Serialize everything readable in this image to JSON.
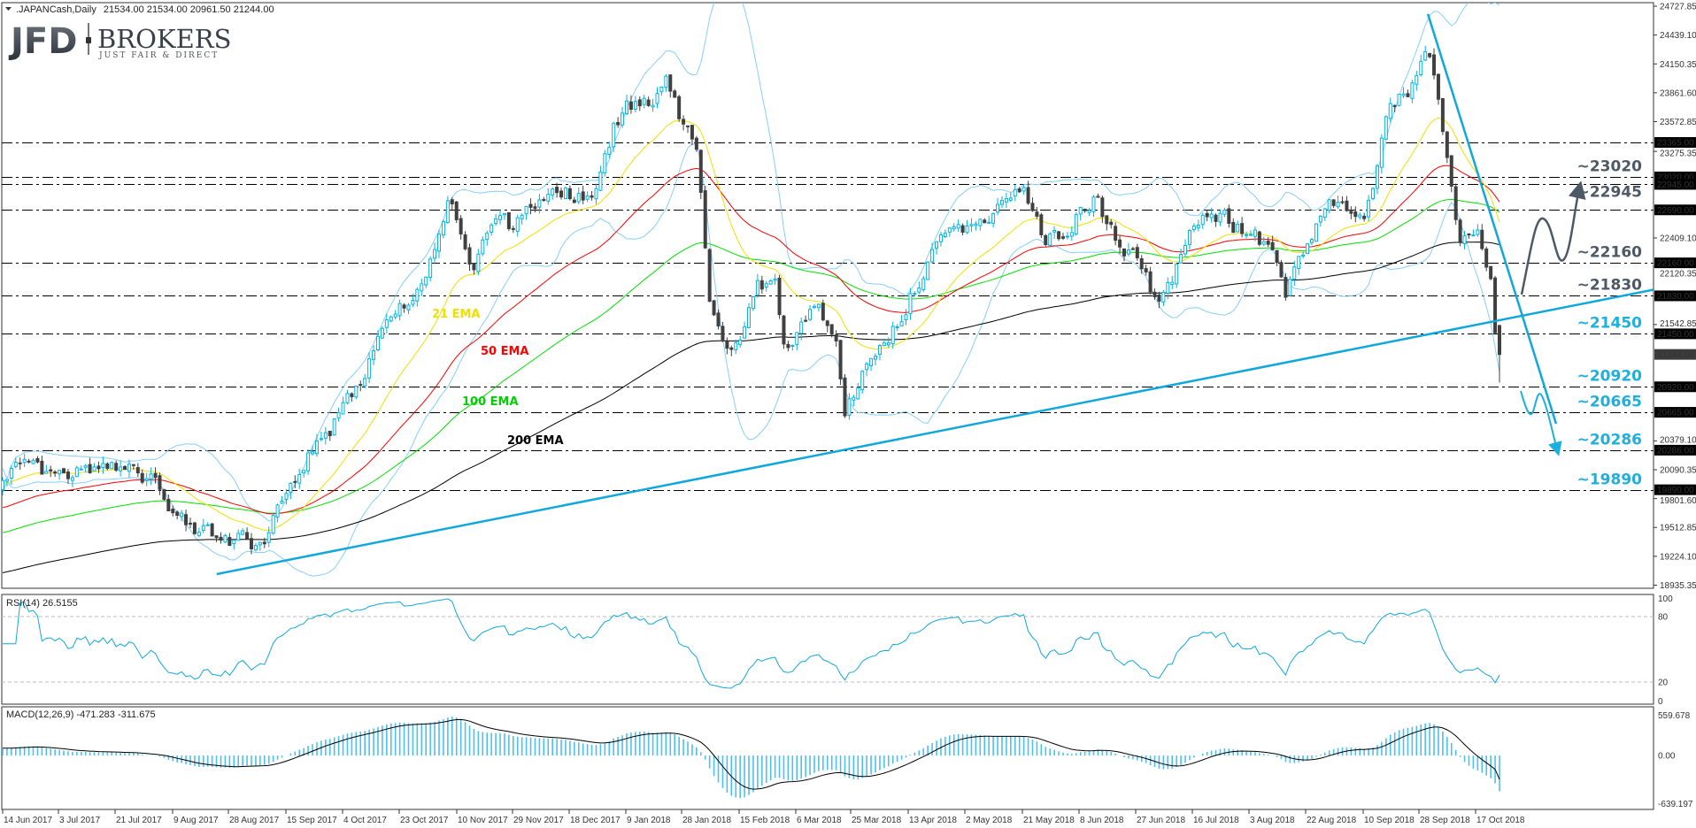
{
  "header": {
    "symbol": ".JAPANCash,Daily",
    "ohlc": "21534.00 21534.00 20961.50 21244.00"
  },
  "logo": {
    "main": "JFD",
    "secondary": "BROKERS",
    "tagline": "JUST FAIR & DIRECT"
  },
  "colors": {
    "bull_candle": "#00b4e6",
    "bear_candle": "#404040",
    "bollinger": "#87cefa",
    "ema21": "#f0e000",
    "ema50": "#ff0000",
    "ema100": "#00e000",
    "ema200": "#000000",
    "trendline": "#10a8dc",
    "level_grey": "#4d5966",
    "level_cyan": "#1ab0e0",
    "rsi": "#10a8dc",
    "macd_hist": "#4ec0f0",
    "macd_signal": "#000000"
  },
  "chart_data": {
    "type": "candlestick",
    "title": ".JAPANCash,Daily",
    "last_bar": {
      "open": 21534.0,
      "high": 21534.0,
      "low": 20961.5,
      "close": 21244.0
    },
    "current_price": 21244.0,
    "y_axis": {
      "range": [
        18935.35,
        24727.85
      ],
      "ticks": [
        "24727.85",
        "24439.10",
        "24150.35",
        "23861.60",
        "23572.85",
        "23275.35",
        "22409.10",
        "22120.35",
        "21542.85",
        "20379.10",
        "20090.35",
        "19801.60",
        "19512.85",
        "19224.10",
        "18935.35"
      ]
    },
    "x_ticks": [
      "14 Jun 2017",
      "3 Jul 2017",
      "21 Jul 2017",
      "9 Aug 2017",
      "28 Aug 2017",
      "15 Sep 2017",
      "4 Oct 2017",
      "23 Oct 2017",
      "10 Nov 2017",
      "29 Nov 2017",
      "18 Dec 2017",
      "9 Jan 2018",
      "28 Jan 2018",
      "15 Feb 2018",
      "6 Mar 2018",
      "25 Mar 2018",
      "13 Apr 2018",
      "2 May 2018",
      "21 May 2018",
      "8 Jun 2018",
      "27 Jun 2018",
      "16 Jul 2018",
      "3 Aug 2018",
      "22 Aug 2018",
      "10 Sep 2018",
      "28 Sep 2018",
      "17 Oct 2018"
    ],
    "price_path": [
      [
        "2017-06-14",
        19900
      ],
      [
        "2017-06-22",
        20150
      ],
      [
        "2017-07-03",
        20050
      ],
      [
        "2017-07-21",
        20050
      ],
      [
        "2017-08-04",
        20000
      ],
      [
        "2017-08-09",
        19700
      ],
      [
        "2017-08-14",
        19500
      ],
      [
        "2017-08-28",
        19400
      ],
      [
        "2017-09-08",
        19300
      ],
      [
        "2017-09-15",
        19950
      ],
      [
        "2017-09-25",
        20350
      ],
      [
        "2017-10-04",
        20650
      ],
      [
        "2017-10-13",
        21200
      ],
      [
        "2017-10-23",
        21700
      ],
      [
        "2017-10-31",
        22000
      ],
      [
        "2017-11-08",
        22850
      ],
      [
        "2017-11-10",
        22700
      ],
      [
        "2017-11-15",
        22100
      ],
      [
        "2017-11-22",
        22500
      ],
      [
        "2017-11-29",
        22500
      ],
      [
        "2017-12-08",
        22800
      ],
      [
        "2017-12-18",
        22850
      ],
      [
        "2017-12-27",
        22800
      ],
      [
        "2018-01-04",
        23500
      ],
      [
        "2018-01-09",
        23750
      ],
      [
        "2018-01-17",
        23800
      ],
      [
        "2018-01-23",
        24000
      ],
      [
        "2018-01-28",
        23600
      ],
      [
        "2018-02-02",
        23200
      ],
      [
        "2018-02-06",
        21600
      ],
      [
        "2018-02-09",
        21400
      ],
      [
        "2018-02-15",
        21300
      ],
      [
        "2018-02-21",
        21900
      ],
      [
        "2018-02-27",
        22000
      ],
      [
        "2018-03-02",
        21300
      ],
      [
        "2018-03-06",
        21500
      ],
      [
        "2018-03-13",
        21700
      ],
      [
        "2018-03-20",
        21300
      ],
      [
        "2018-03-23",
        20600
      ],
      [
        "2018-03-28",
        21000
      ],
      [
        "2018-04-04",
        21300
      ],
      [
        "2018-04-13",
        21800
      ],
      [
        "2018-04-20",
        22200
      ],
      [
        "2018-05-02",
        22500
      ],
      [
        "2018-05-10",
        22600
      ],
      [
        "2018-05-21",
        22900
      ],
      [
        "2018-05-28",
        22400
      ],
      [
        "2018-06-04",
        22500
      ],
      [
        "2018-06-08",
        22700
      ],
      [
        "2018-06-14",
        22800
      ],
      [
        "2018-06-20",
        22400
      ],
      [
        "2018-06-27",
        22200
      ],
      [
        "2018-07-03",
        21800
      ],
      [
        "2018-07-09",
        21900
      ],
      [
        "2018-07-16",
        22600
      ],
      [
        "2018-07-25",
        22600
      ],
      [
        "2018-08-03",
        22500
      ],
      [
        "2018-08-10",
        22300
      ],
      [
        "2018-08-15",
        21800
      ],
      [
        "2018-08-22",
        22300
      ],
      [
        "2018-08-29",
        22800
      ],
      [
        "2018-09-04",
        22700
      ],
      [
        "2018-09-10",
        22650
      ],
      [
        "2018-09-14",
        23100
      ],
      [
        "2018-09-18",
        23700
      ],
      [
        "2018-09-25",
        23900
      ],
      [
        "2018-10-02",
        24250
      ],
      [
        "2018-10-05",
        23800
      ],
      [
        "2018-10-11",
        22400
      ],
      [
        "2018-10-17",
        22500
      ],
      [
        "2018-10-22",
        22100
      ],
      [
        "2018-10-23",
        21500
      ],
      [
        "2018-10-24",
        21500
      ],
      [
        "2018-10-25",
        21244
      ]
    ],
    "indicators": {
      "ema_labels": {
        "ema21": "21 EMA",
        "ema50": "50 EMA",
        "ema100": "100 EMA",
        "ema200": "200 EMA"
      },
      "rsi": {
        "label": "RSI(14) 26.5155",
        "value": 26.5155,
        "levels": [
          20,
          80
        ],
        "range": [
          0,
          100
        ],
        "ticks": [
          "100",
          "80",
          "20",
          "0"
        ]
      },
      "macd": {
        "label": "MACD(12,26,9) -471.283 -311.675",
        "main": -471.283,
        "signal": -311.675,
        "range": [
          -639.197,
          559.678
        ],
        "ticks": [
          "559.678",
          "0.00",
          "-639.197"
        ]
      }
    },
    "levels": [
      {
        "value": 23365,
        "box": "23365.00",
        "label": ""
      },
      {
        "value": 23020,
        "box": "23020.00",
        "label": "~23020",
        "color": "grey"
      },
      {
        "value": 22945,
        "box": "22945.00",
        "label": "~22945",
        "color": "grey"
      },
      {
        "value": 22690,
        "box": "22690.00",
        "label": ""
      },
      {
        "value": 22160,
        "box": "22160.00",
        "label": "~22160",
        "color": "grey"
      },
      {
        "value": 21830,
        "box": "21830.00",
        "label": "~21830",
        "color": "grey"
      },
      {
        "value": 21450,
        "box": "21450.00",
        "label": "~21450",
        "color": "cyan"
      },
      {
        "value": 20920,
        "box": "20920.00",
        "label": "~20920",
        "color": "cyan"
      },
      {
        "value": 20665,
        "box": "20665.00",
        "label": "~20665",
        "color": "cyan"
      },
      {
        "value": 20286,
        "box": "20286.00",
        "label": "~20286",
        "color": "cyan"
      },
      {
        "value": 19890,
        "box": "19890.00",
        "label": "~19890",
        "color": "cyan"
      }
    ],
    "current_price_box": "21244.00",
    "trendlines": [
      {
        "type": "support",
        "from": [
          "2017-08-24",
          19046
        ],
        "to": [
          "2018-03-23",
          20290
        ]
      },
      {
        "type": "resistance",
        "from": [
          "2018-10-01",
          24650
        ],
        "to": [
          "2018-11-13",
          20551
        ]
      }
    ]
  }
}
